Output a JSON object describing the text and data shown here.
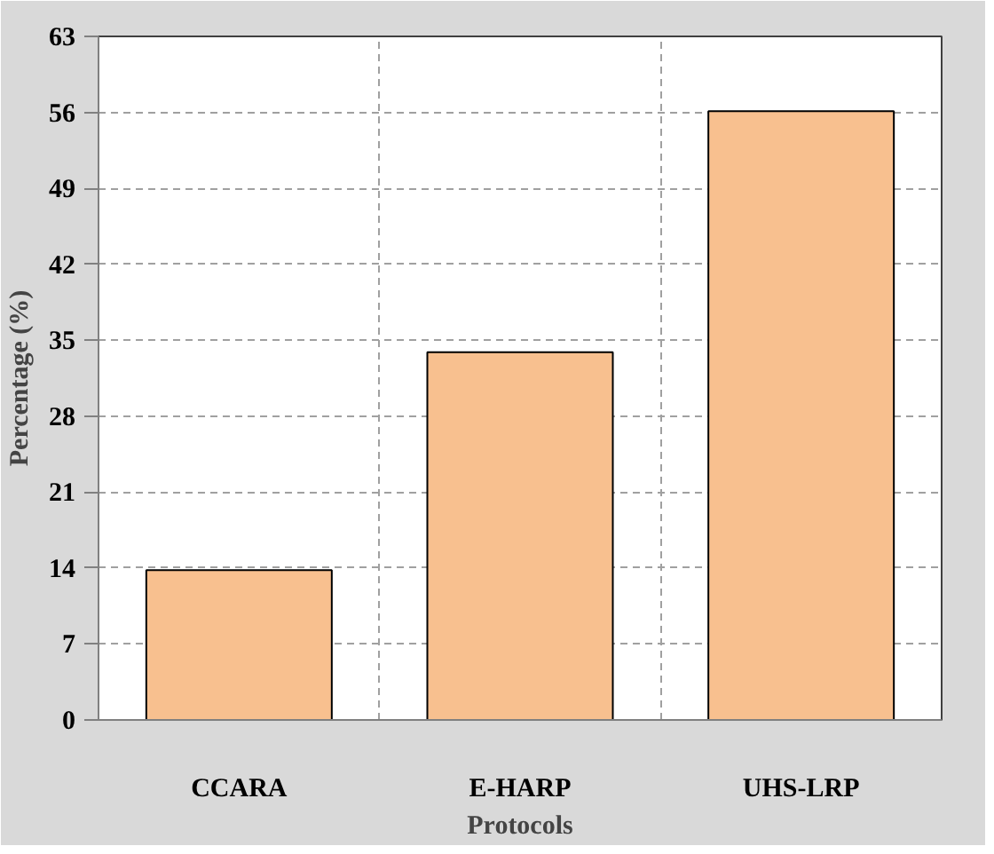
{
  "chart_data": {
    "type": "bar",
    "xlabel": "Protocols",
    "ylabel": "Percentage (%)",
    "categories": [
      "CCARA",
      "E-HARP",
      "UHS-LRP"
    ],
    "values": [
      13.8,
      33.9,
      56.1
    ],
    "color": "#f8c08f",
    "ylim": [
      0,
      63
    ],
    "yticks": [
      0,
      7,
      14,
      21,
      28,
      35,
      42,
      49,
      56,
      63
    ],
    "grid": true
  }
}
